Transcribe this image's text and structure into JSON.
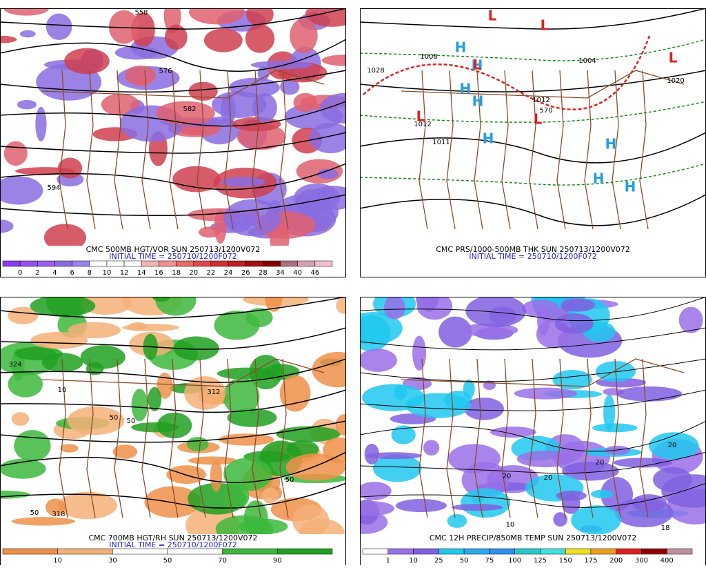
{
  "panels": [
    {
      "caption": "CMC 500MB HGT/VOR SUN 250713/1200V072",
      "initial_time": "INITIAL TIME = 250710/1200F072",
      "colorbar": {
        "labels": [
          "0",
          "2",
          "4",
          "6",
          "8",
          "10",
          "12",
          "14",
          "16",
          "18",
          "20",
          "22",
          "24",
          "26",
          "28",
          "34",
          "40",
          "46"
        ],
        "colors": [
          "#8a3cf0",
          "#9450f0",
          "#9a5ef0",
          "#8a6ce0",
          "#9a80f0",
          "#ffffff",
          "#ffffff",
          "#ffffff",
          "#f4b4b4",
          "#f09090",
          "#e86a6a",
          "#e04848",
          "#d03030",
          "#c02020",
          "#a01010",
          "#800000",
          "#b07080",
          "#d8a0b0",
          "#f0c0d0"
        ]
      },
      "map_labels": [
        "558",
        "576",
        "582",
        "594"
      ]
    },
    {
      "caption": "CMC PRS/1000-500MB THK SUN 250713/1200V072",
      "initial_time": "INITIAL TIME = 250710/1200F072",
      "map_labels": [
        "1028",
        "1008",
        "1012",
        "570",
        "1004",
        "1020",
        "1012",
        "1011",
        "H",
        "H",
        "H",
        "H",
        "H",
        "H",
        "H",
        "H",
        "L",
        "L",
        "L",
        "L",
        "L",
        "L"
      ]
    },
    {
      "caption": "CMC 700MB HGT/RH SUN 250713/1200V072",
      "initial_time": "INITIAL TIME = 250710/1200F072",
      "colorbar": {
        "labels": [
          "10",
          "30",
          "50",
          "70",
          "90"
        ],
        "colors": [
          "#f0904a",
          "#f4b078",
          "#ffffff",
          "#ffffff",
          "#3cb83c",
          "#20a020"
        ]
      },
      "map_labels": [
        "324",
        "312",
        "10",
        "50",
        "50",
        "50",
        "318",
        "50"
      ]
    },
    {
      "caption": "CMC 12H PRECIP/850MB TEMP SUN 250713/1200V072",
      "colorbar": {
        "labels": [
          "1",
          "10",
          "25",
          "50",
          "75",
          "100",
          "125",
          "150",
          "175",
          "200",
          "300",
          "400"
        ],
        "colors": [
          "#ffffff",
          "#9a70e8",
          "#8060e0",
          "#20c8f0",
          "#2aa8f0",
          "#3090f0",
          "#2cc8c8",
          "#40e0e0",
          "#f0e020",
          "#f0a020",
          "#e02020",
          "#900000",
          "#c090a0"
        ]
      },
      "map_labels": [
        "20",
        "20",
        "10",
        "20",
        "20",
        "18"
      ]
    }
  ]
}
